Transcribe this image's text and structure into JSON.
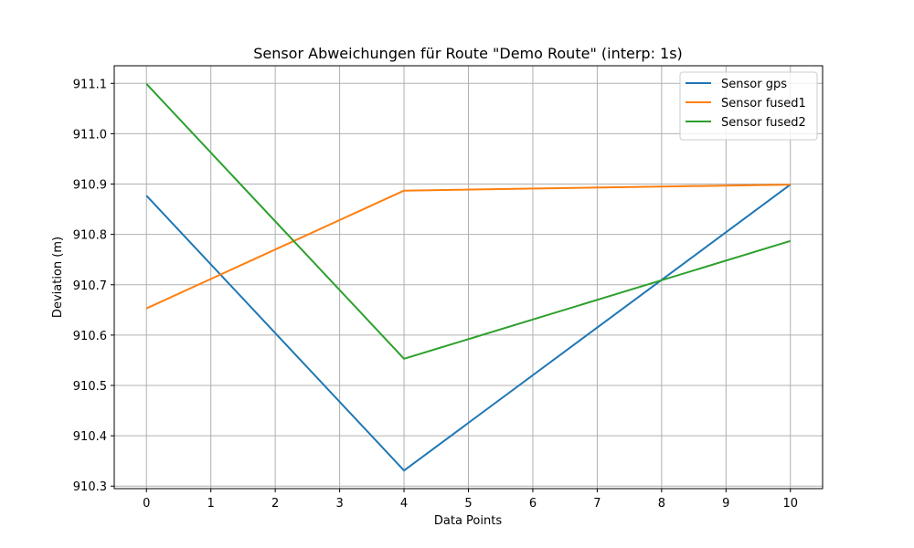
{
  "chart_data": {
    "type": "line",
    "title": "Sensor Abweichungen für Route \"Demo Route\" (interp: 1s)",
    "xlabel": "Data Points",
    "ylabel": "Deviation (m)",
    "xlim": [
      -0.5,
      10.5
    ],
    "ylim": [
      910.295,
      911.135
    ],
    "xticks": [
      0,
      1,
      2,
      3,
      4,
      5,
      6,
      7,
      8,
      9,
      10
    ],
    "yticks": [
      910.3,
      910.4,
      910.5,
      910.6,
      910.7,
      910.8,
      910.9,
      911.0,
      911.1
    ],
    "ytick_labels": [
      "910.3",
      "910.4",
      "910.5",
      "910.6",
      "910.7",
      "910.8",
      "910.9",
      "911.0",
      "911.1"
    ],
    "grid": true,
    "legend_position": "top-right",
    "series": [
      {
        "name": "Sensor gps",
        "color": "#1f77b4",
        "x": [
          0,
          4,
          10
        ],
        "y": [
          910.877,
          910.331,
          910.899
        ]
      },
      {
        "name": "Sensor fused1",
        "color": "#ff7f0e",
        "x": [
          0,
          4,
          10
        ],
        "y": [
          910.653,
          910.887,
          910.899
        ]
      },
      {
        "name": "Sensor fused2",
        "color": "#2ca02c",
        "x": [
          0,
          4,
          10
        ],
        "y": [
          911.099,
          910.553,
          910.787
        ]
      }
    ]
  }
}
